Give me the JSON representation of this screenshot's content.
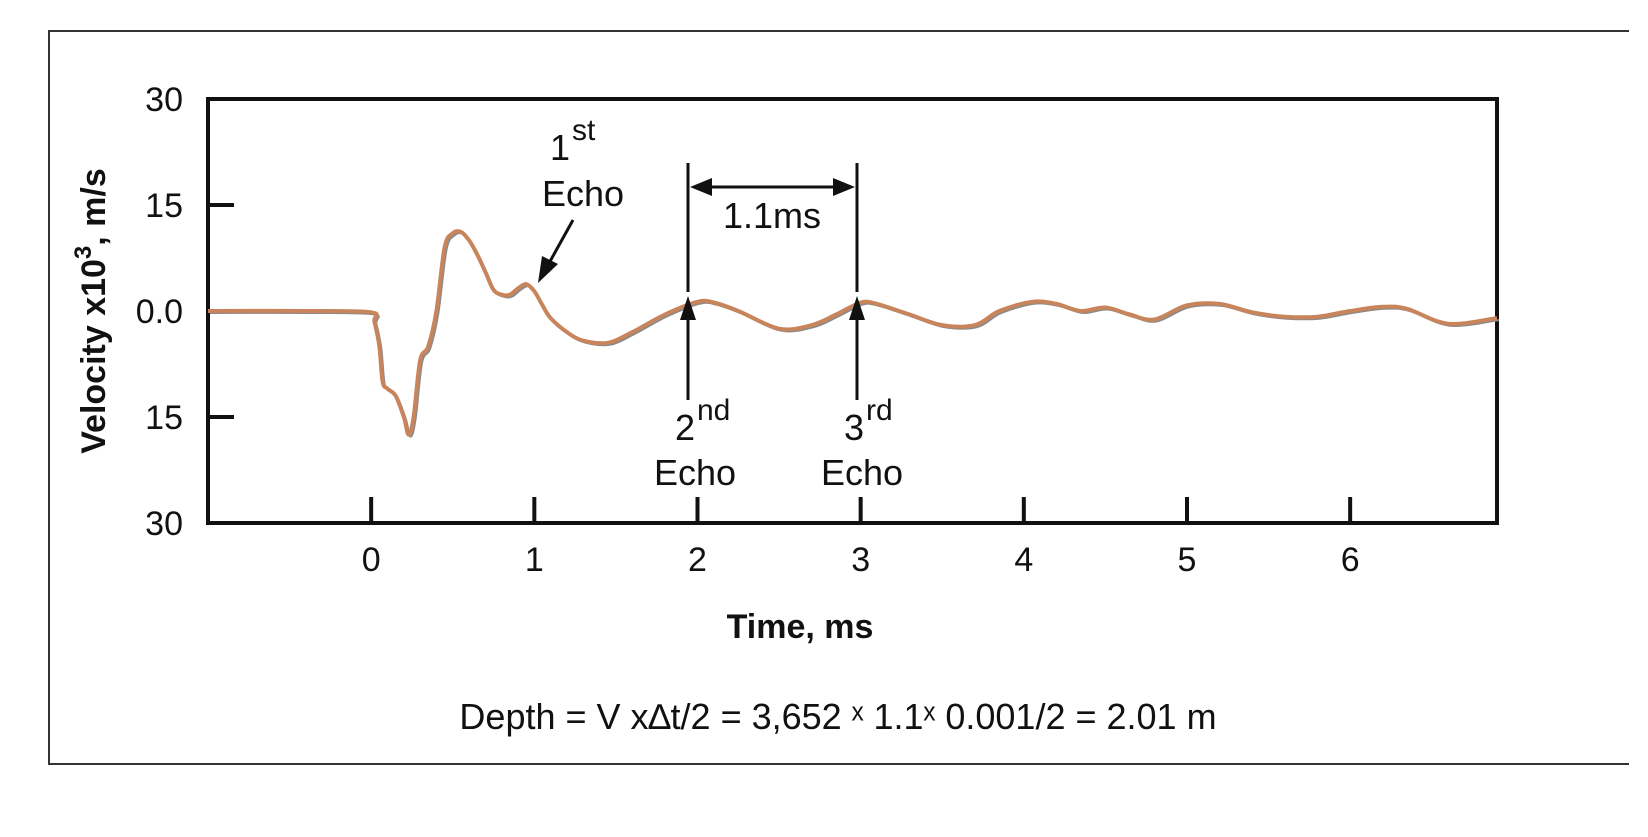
{
  "chart_data": {
    "type": "line",
    "xlabel": "Time, ms",
    "ylabel": "Velocity x10",
    "ylabel_sup": "3",
    "ylabel_unit": ", m/s",
    "xlim": [
      -1.0,
      6.9
    ],
    "ylim": [
      -30,
      30
    ],
    "x_ticks": [
      0,
      1,
      2,
      3,
      4,
      5,
      6
    ],
    "y_ticks": [
      {
        "value": 30,
        "label": "30"
      },
      {
        "value": 15,
        "label": "15"
      },
      {
        "value": 0,
        "label": "0.0"
      },
      {
        "value": -15,
        "label": "15"
      },
      {
        "value": -30,
        "label": "30"
      }
    ],
    "grid": false,
    "line_color": "#c8845a",
    "series": [
      {
        "x": [
          -1.0,
          -0.4,
          0.0,
          0.02,
          0.05,
          0.07,
          0.1,
          0.15,
          0.2,
          0.23,
          0.26,
          0.3,
          0.35,
          0.4,
          0.45,
          0.5,
          0.55,
          0.6,
          0.65,
          0.7,
          0.75,
          0.8,
          0.85,
          0.9,
          0.95,
          1.0,
          1.05,
          1.1,
          1.2,
          1.3,
          1.45,
          1.6,
          1.8,
          2.0,
          2.1,
          2.25,
          2.5,
          2.7,
          2.85,
          3.0,
          3.1,
          3.3,
          3.5,
          3.7,
          3.85,
          4.05,
          4.2,
          4.35,
          4.5,
          4.65,
          4.8,
          5.0,
          5.2,
          5.4,
          5.6,
          5.8,
          6.0,
          6.2,
          6.35,
          6.6,
          6.9
        ],
        "y": [
          0.0,
          0.0,
          -0.2,
          -1.5,
          -5,
          -10,
          -11,
          -12,
          -15,
          -17.5,
          -15,
          -7,
          -5,
          0,
          9,
          11,
          11.2,
          10,
          8,
          5.5,
          3,
          2.3,
          2.3,
          3.2,
          3.8,
          2.8,
          0.8,
          -1,
          -3,
          -4.2,
          -4.5,
          -3,
          -0.5,
          1.3,
          1.2,
          0,
          -2.5,
          -2,
          -0.5,
          1.2,
          1.0,
          -0.5,
          -2,
          -2,
          0,
          1.3,
          1.0,
          0,
          0.5,
          -0.5,
          -1.2,
          0.8,
          1.0,
          -0.2,
          -0.8,
          -0.8,
          0,
          0.6,
          0.3,
          -1.8,
          -1.0
        ]
      }
    ],
    "annotations": {
      "first_echo": {
        "ordinal": "1",
        "suffix": "st",
        "word": "Echo"
      },
      "second_echo": {
        "ordinal": "2",
        "suffix": "nd",
        "word": "Echo"
      },
      "third_echo": {
        "ordinal": "3",
        "suffix": "rd",
        "word": "Echo"
      },
      "interval": "1.1ms",
      "formula": "Depth = V x∆t/2 = 3,652 ˣ 1.1ˣ 0.001/2 = 2.01 m"
    }
  }
}
